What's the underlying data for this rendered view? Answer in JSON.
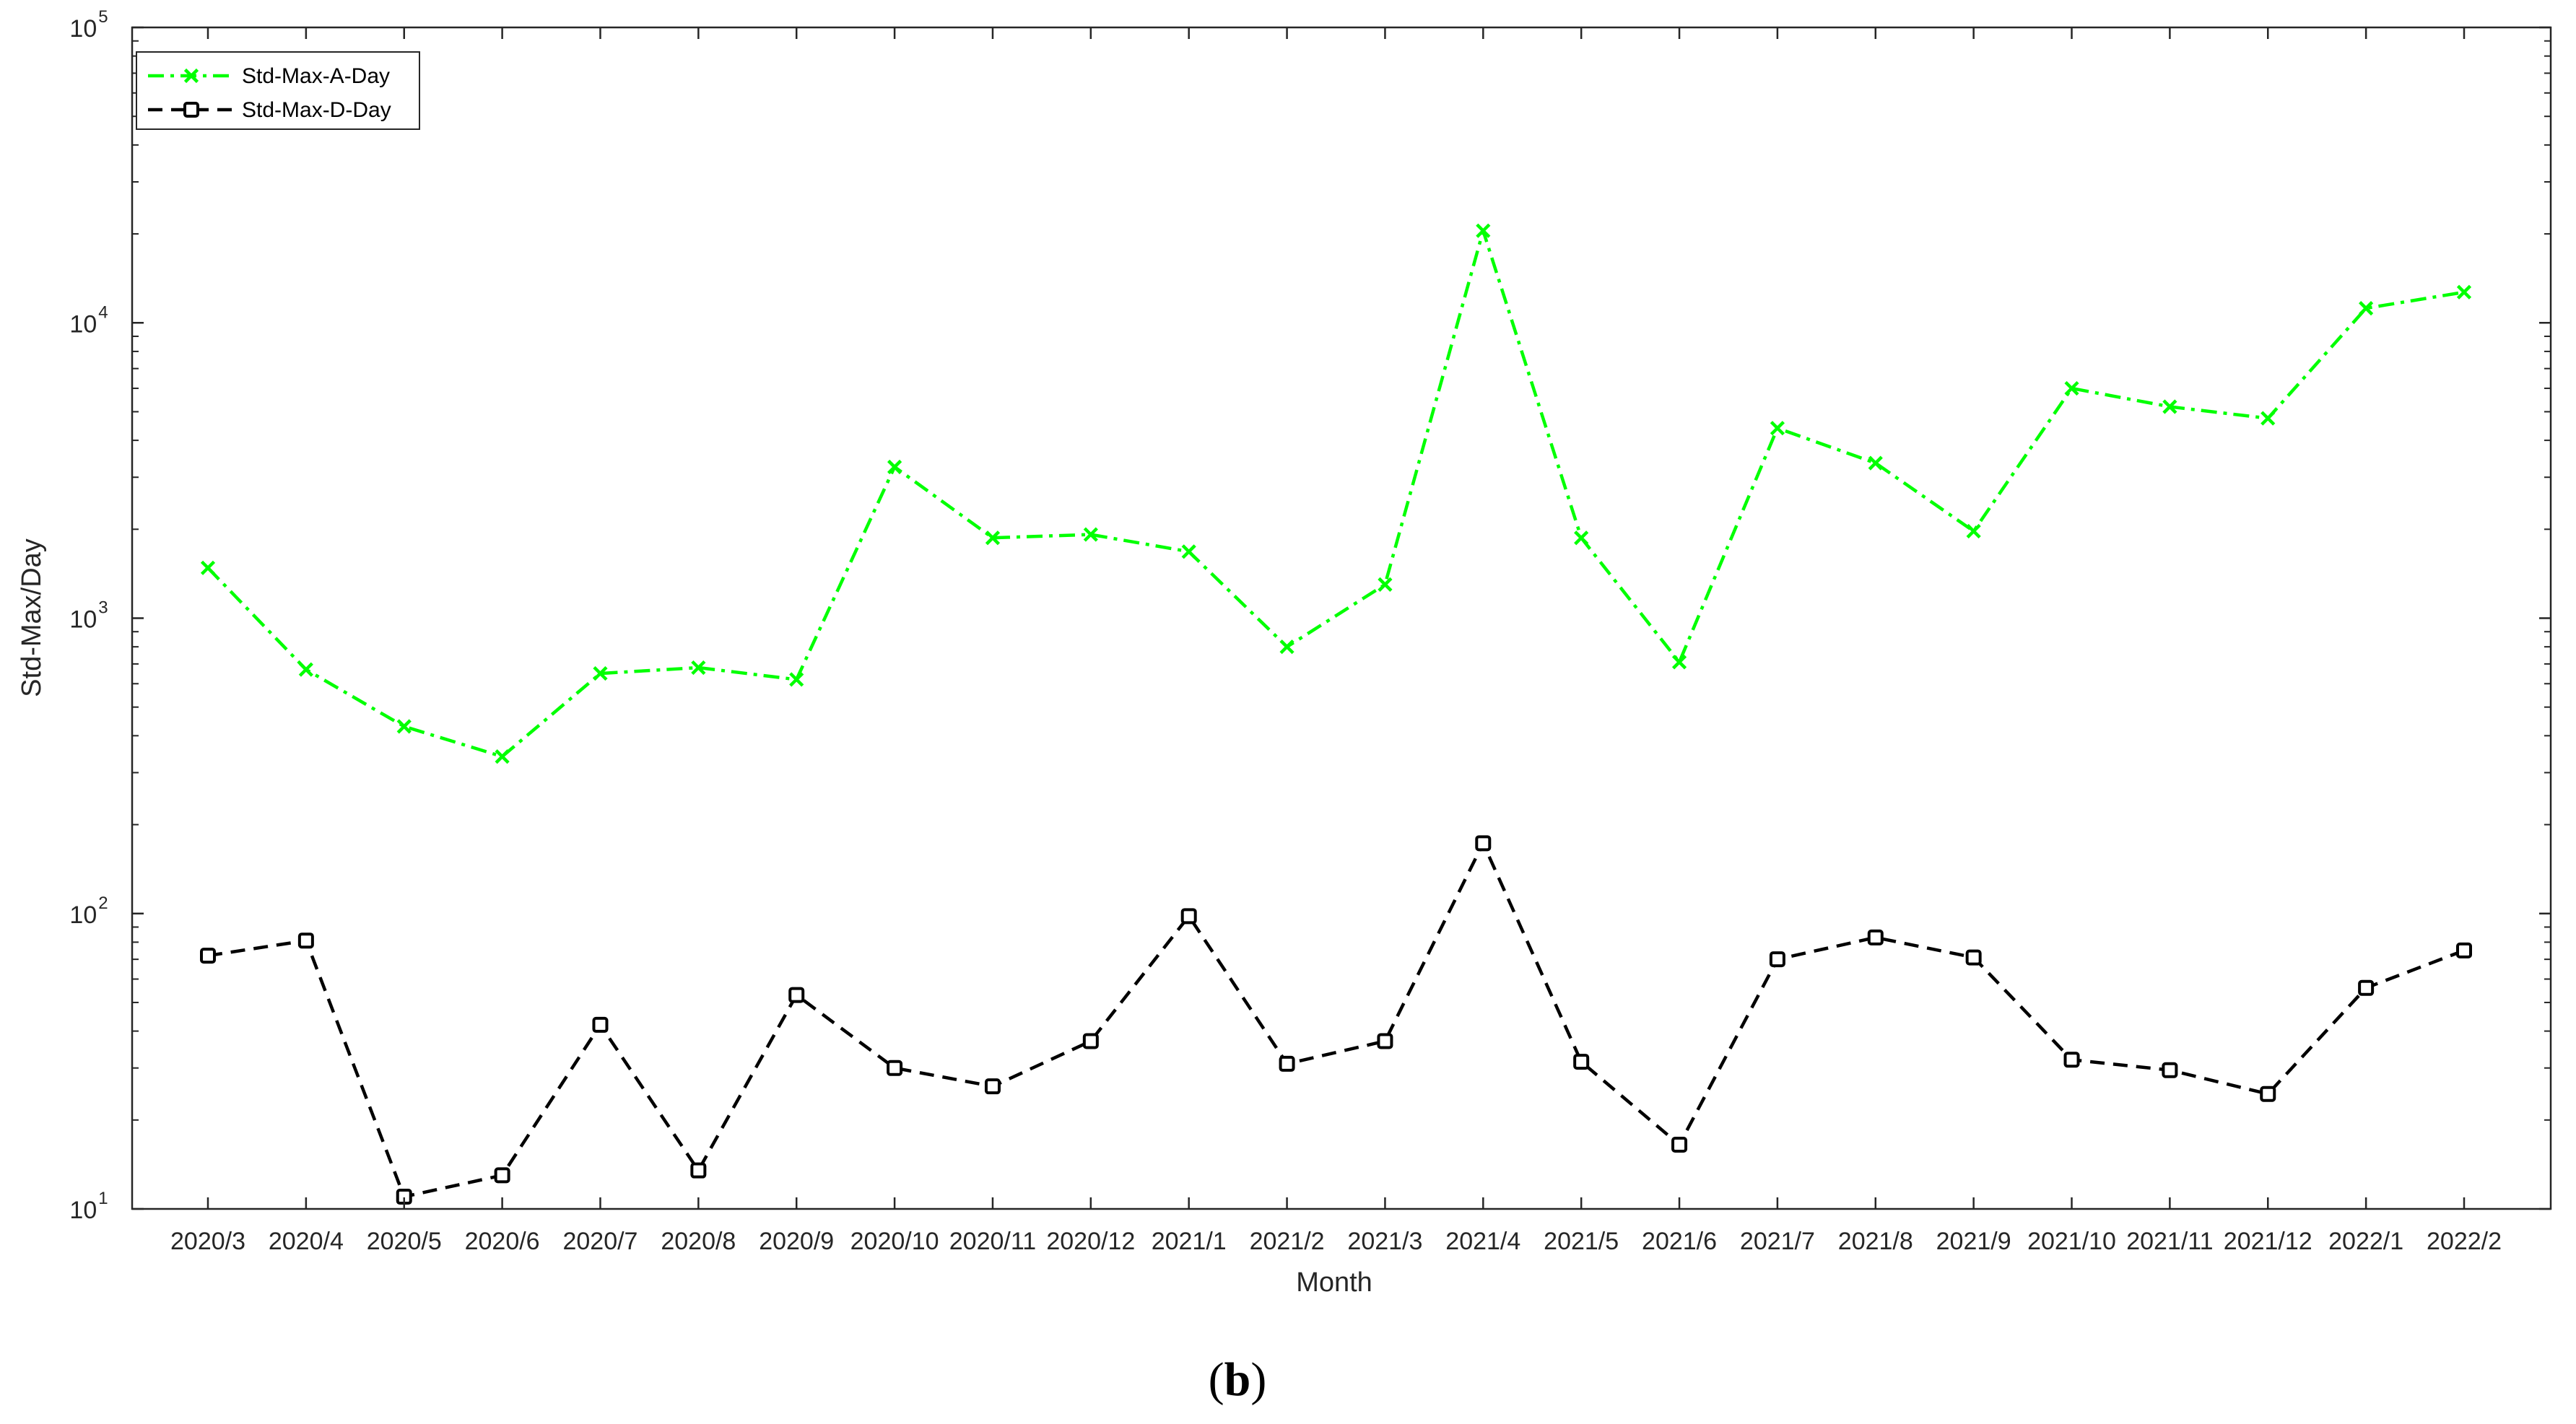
{
  "chart_data": {
    "type": "line",
    "xlabel": "Month",
    "ylabel": "Std-Max/Day",
    "yscale": "log",
    "ylim": [
      10,
      100000
    ],
    "yticks": [
      {
        "base": "10",
        "exp": "1"
      },
      {
        "base": "10",
        "exp": "2"
      },
      {
        "base": "10",
        "exp": "3"
      },
      {
        "base": "10",
        "exp": "4"
      },
      {
        "base": "10",
        "exp": "5"
      }
    ],
    "categories": [
      "2020/3",
      "2020/4",
      "2020/5",
      "2020/6",
      "2020/7",
      "2020/8",
      "2020/9",
      "2020/10",
      "2020/11",
      "2020/12",
      "2021/1",
      "2021/2",
      "2021/3",
      "2021/4",
      "2021/5",
      "2021/6",
      "2021/7",
      "2021/8",
      "2021/9",
      "2021/10",
      "2021/11",
      "2021/12",
      "2022/1",
      "2022/2"
    ],
    "series": [
      {
        "name": "Std-Max-A-Day",
        "color": "#00ff00",
        "marker": "x",
        "line_style": "dash-dot",
        "values": [
          1480,
          670,
          430,
          340,
          650,
          680,
          620,
          3250,
          1870,
          1920,
          1680,
          800,
          1300,
          20500,
          1870,
          710,
          4400,
          3350,
          1970,
          6000,
          5200,
          4750,
          11200,
          12700
        ]
      },
      {
        "name": "Std-Max-D-Day",
        "color": "#000000",
        "marker": "square",
        "line_style": "dashed",
        "values": [
          72,
          81,
          11,
          13,
          42,
          13.5,
          53,
          30,
          26,
          37,
          98,
          31,
          37,
          173,
          31.5,
          16.5,
          70,
          83,
          71,
          32,
          29.5,
          24.5,
          56,
          75
        ]
      }
    ],
    "grid": false,
    "legend_position": "top-left"
  },
  "caption": {
    "open": "(",
    "letter": "b",
    "close": ")"
  }
}
